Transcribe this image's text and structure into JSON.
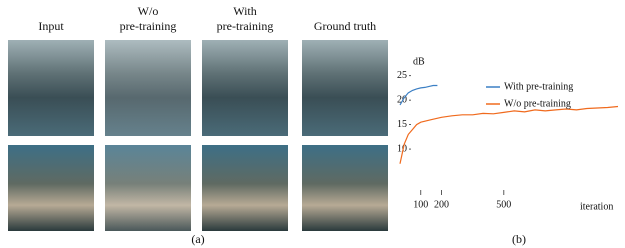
{
  "figure": {
    "columns": [
      [
        "Input"
      ],
      [
        "W/o",
        "pre-training"
      ],
      [
        "With",
        "pre-training"
      ],
      [
        "Ground truth"
      ]
    ],
    "panel_labels": [
      "(a)",
      "(b)"
    ]
  },
  "chart_data": {
    "type": "line",
    "ylabel": "dB",
    "xlabel": "iteration",
    "xlim": [
      0,
      1050
    ],
    "ylim": [
      0,
      28
    ],
    "yticks": [
      10,
      15,
      20,
      25
    ],
    "xticks": [
      100,
      200,
      500
    ],
    "legend": "upper right",
    "series": [
      {
        "name": "With pre-training",
        "color": "#3b7fc4",
        "x": [
          0,
          20,
          40,
          60,
          80,
          100,
          120,
          140,
          160,
          180
        ],
        "values": [
          19,
          20.5,
          21.5,
          22,
          22.3,
          22.5,
          22.6,
          22.8,
          23,
          23
        ]
      },
      {
        "name": "W/o pre-training",
        "color": "#f06a1d",
        "x": [
          0,
          20,
          40,
          60,
          80,
          100,
          150,
          200,
          250,
          300,
          350,
          400,
          450,
          500,
          550,
          600,
          650,
          700,
          750,
          800,
          850,
          900,
          950,
          1000,
          1050
        ],
        "values": [
          7,
          11,
          13,
          14,
          15,
          15.5,
          16,
          16.5,
          16.8,
          17,
          17,
          17.3,
          17.2,
          17.5,
          17.8,
          17.6,
          18,
          17.8,
          18,
          18.2,
          18,
          18.3,
          18.4,
          18.5,
          18.7
        ]
      }
    ]
  }
}
